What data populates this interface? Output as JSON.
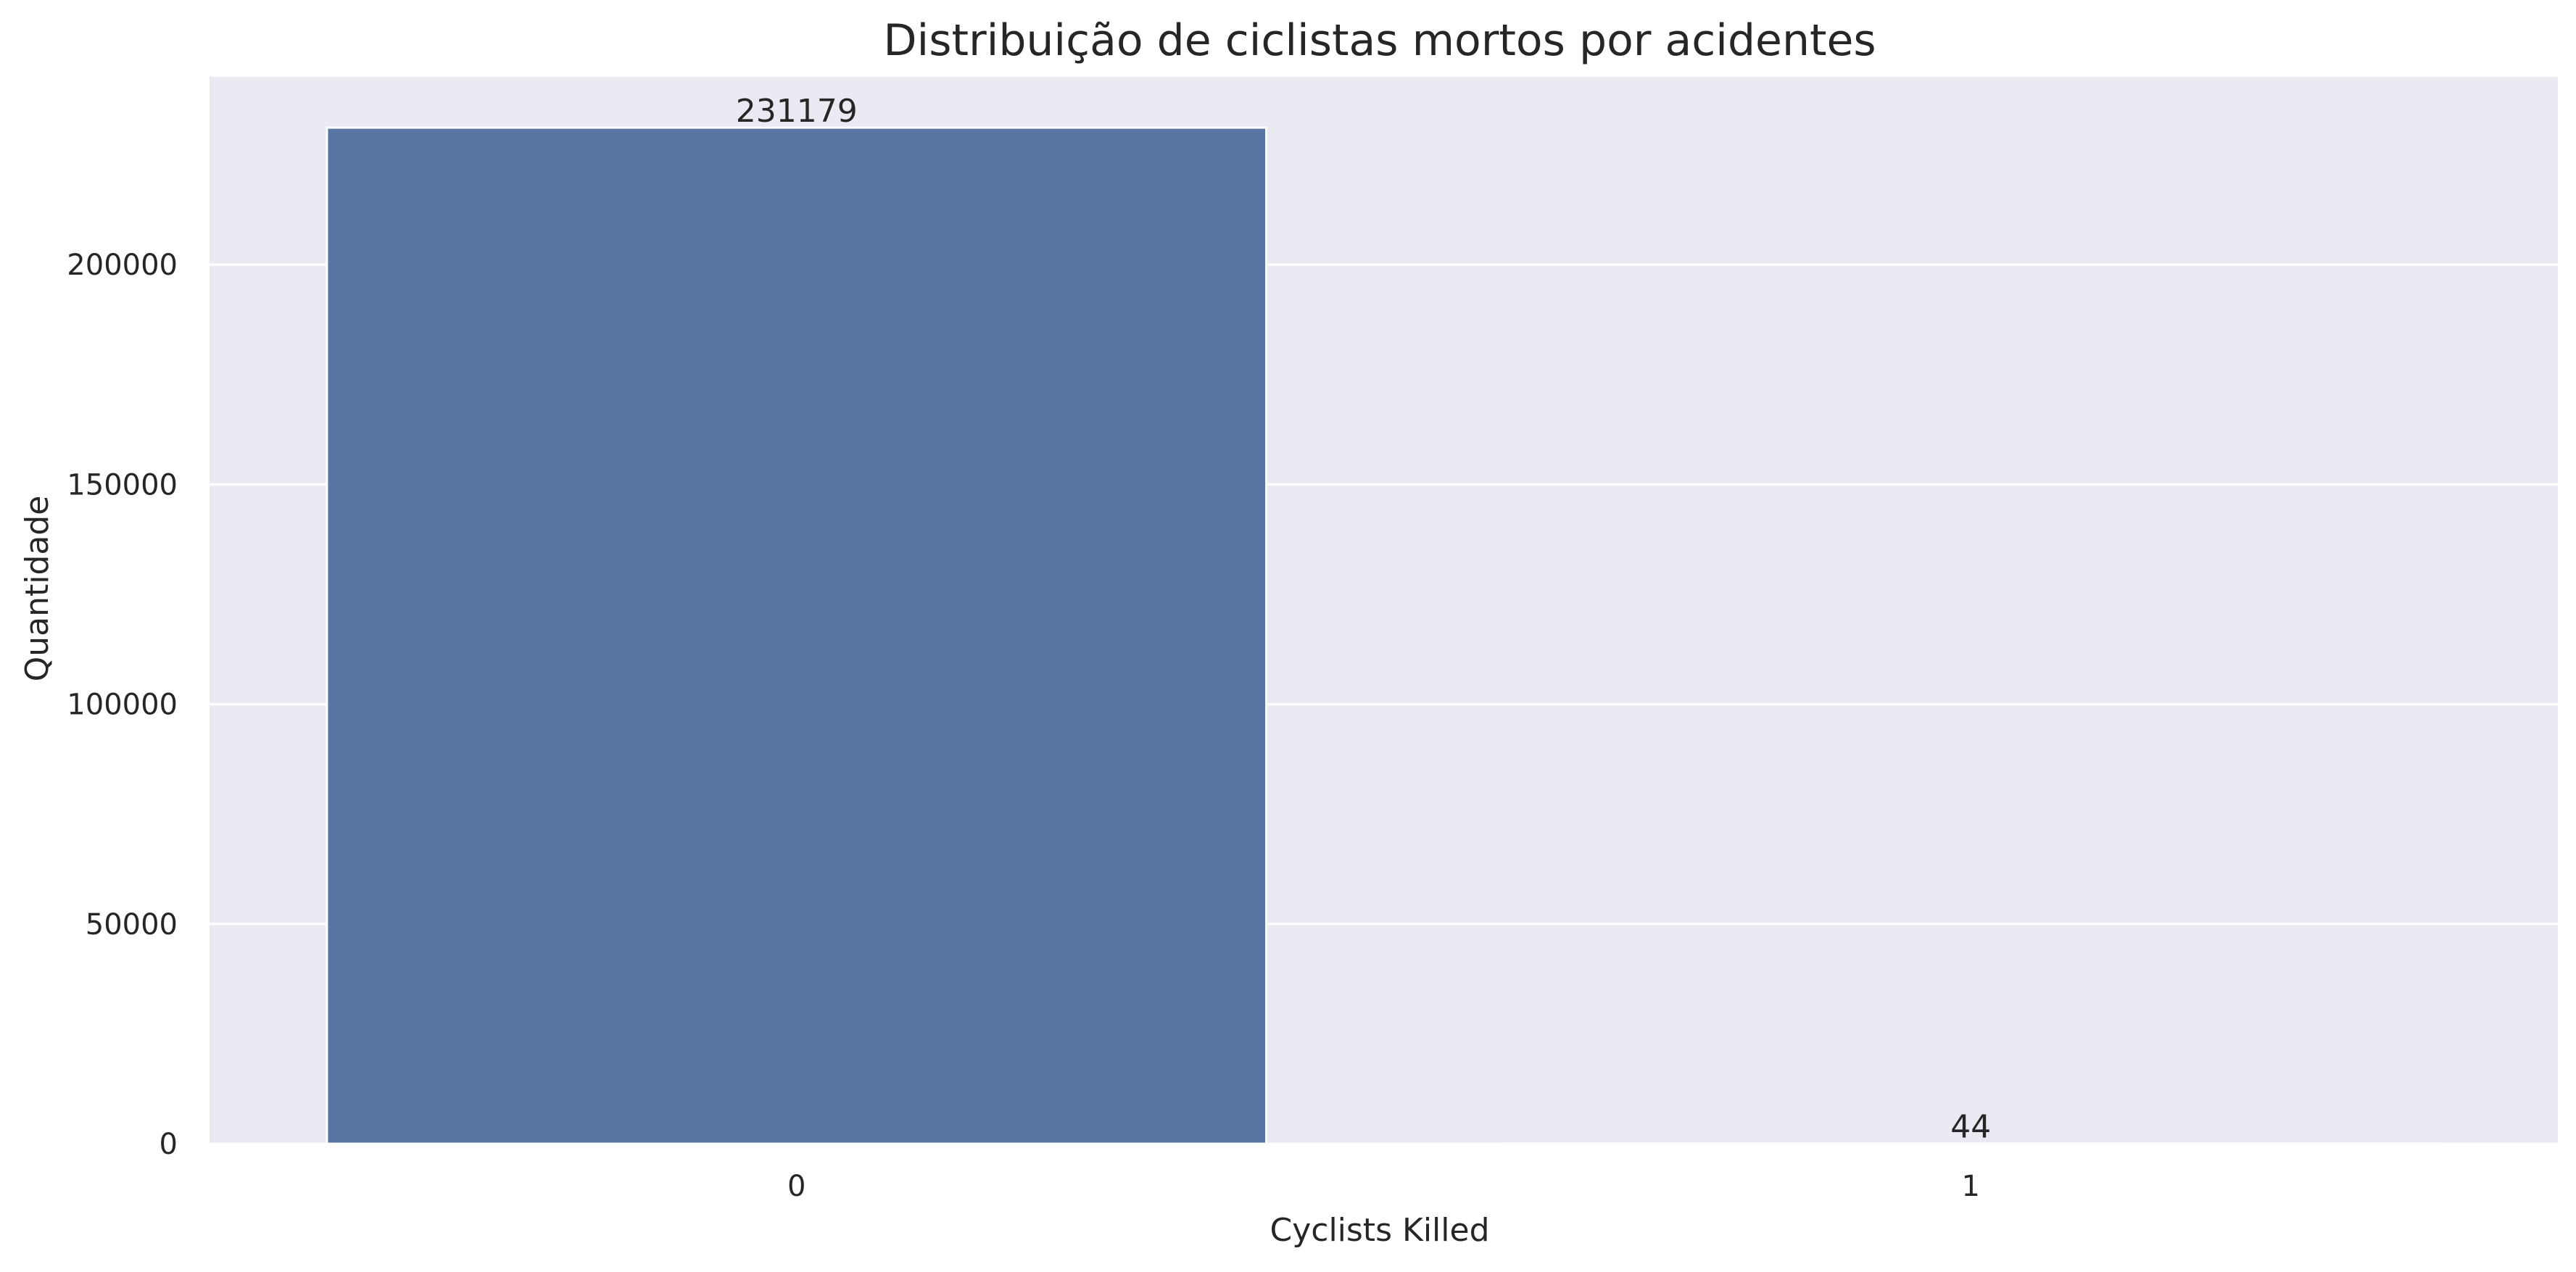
{
  "chart_data": {
    "type": "bar",
    "title": "Distribuição de ciclistas mortos por acidentes",
    "xlabel": "Cyclists Killed",
    "ylabel": "Quantidade",
    "categories": [
      "0",
      "1"
    ],
    "values": [
      231179,
      44
    ],
    "data_labels": [
      "231179",
      "44"
    ],
    "ylim": [
      0,
      242737.95
    ],
    "yticks": [
      0,
      50000,
      100000,
      150000,
      200000
    ],
    "ytick_labels": [
      "0",
      "50000",
      "100000",
      "150000",
      "200000"
    ],
    "grid": true,
    "legend": "none",
    "colors": {
      "bar": "#5975a4",
      "plot_background": "#eaeaf2",
      "grid": "#ffffff",
      "text": "#262626"
    }
  }
}
